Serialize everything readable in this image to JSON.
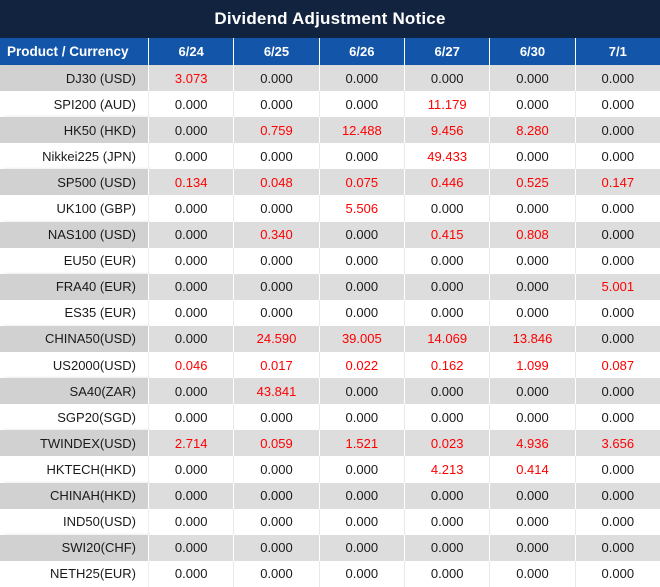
{
  "title": "Dividend Adjustment Notice",
  "colors": {
    "title_bg": "#12233f",
    "header_bg": "#1356a9",
    "label_alt_bg": "#d1d1d1",
    "row_alt_bg": "#dddddd",
    "value_red": "#ff0000",
    "value_black": "#1a1a1a"
  },
  "table": {
    "header": [
      "Product / Currency",
      "6/24",
      "6/25",
      "6/26",
      "6/27",
      "6/30",
      "7/1"
    ],
    "rows": [
      {
        "label": "DJ30 (USD)",
        "values": [
          "3.073",
          "0.000",
          "0.000",
          "0.000",
          "0.000",
          "0.000"
        ],
        "red": [
          1,
          0,
          0,
          0,
          0,
          0
        ]
      },
      {
        "label": "SPI200 (AUD)",
        "values": [
          "0.000",
          "0.000",
          "0.000",
          "11.179",
          "0.000",
          "0.000"
        ],
        "red": [
          0,
          0,
          0,
          1,
          0,
          0
        ]
      },
      {
        "label": "HK50 (HKD)",
        "values": [
          "0.000",
          "0.759",
          "12.488",
          "9.456",
          "8.280",
          "0.000"
        ],
        "red": [
          0,
          1,
          1,
          1,
          1,
          0
        ]
      },
      {
        "label": "Nikkei225 (JPN)",
        "values": [
          "0.000",
          "0.000",
          "0.000",
          "49.433",
          "0.000",
          "0.000"
        ],
        "red": [
          0,
          0,
          0,
          1,
          0,
          0
        ]
      },
      {
        "label": "SP500 (USD)",
        "values": [
          "0.134",
          "0.048",
          "0.075",
          "0.446",
          "0.525",
          "0.147"
        ],
        "red": [
          1,
          1,
          1,
          1,
          1,
          1
        ]
      },
      {
        "label": "UK100 (GBP)",
        "values": [
          "0.000",
          "0.000",
          "5.506",
          "0.000",
          "0.000",
          "0.000"
        ],
        "red": [
          0,
          0,
          1,
          0,
          0,
          0
        ]
      },
      {
        "label": "NAS100 (USD)",
        "values": [
          "0.000",
          "0.340",
          "0.000",
          "0.415",
          "0.808",
          "0.000"
        ],
        "red": [
          0,
          1,
          0,
          1,
          1,
          0
        ]
      },
      {
        "label": "EU50 (EUR)",
        "values": [
          "0.000",
          "0.000",
          "0.000",
          "0.000",
          "0.000",
          "0.000"
        ],
        "red": [
          0,
          0,
          0,
          0,
          0,
          0
        ]
      },
      {
        "label": "FRA40 (EUR)",
        "values": [
          "0.000",
          "0.000",
          "0.000",
          "0.000",
          "0.000",
          "5.001"
        ],
        "red": [
          0,
          0,
          0,
          0,
          0,
          1
        ]
      },
      {
        "label": "ES35 (EUR)",
        "values": [
          "0.000",
          "0.000",
          "0.000",
          "0.000",
          "0.000",
          "0.000"
        ],
        "red": [
          0,
          0,
          0,
          0,
          0,
          0
        ]
      },
      {
        "label": "CHINA50(USD)",
        "values": [
          "0.000",
          "24.590",
          "39.005",
          "14.069",
          "13.846",
          "0.000"
        ],
        "red": [
          0,
          1,
          1,
          1,
          1,
          0
        ]
      },
      {
        "label": "US2000(USD)",
        "values": [
          "0.046",
          "0.017",
          "0.022",
          "0.162",
          "1.099",
          "0.087"
        ],
        "red": [
          1,
          1,
          1,
          1,
          1,
          1
        ]
      },
      {
        "label": "SA40(ZAR)",
        "values": [
          "0.000",
          "43.841",
          "0.000",
          "0.000",
          "0.000",
          "0.000"
        ],
        "red": [
          0,
          1,
          0,
          0,
          0,
          0
        ]
      },
      {
        "label": "SGP20(SGD)",
        "values": [
          "0.000",
          "0.000",
          "0.000",
          "0.000",
          "0.000",
          "0.000"
        ],
        "red": [
          0,
          0,
          0,
          0,
          0,
          0
        ]
      },
      {
        "label": "TWINDEX(USD)",
        "values": [
          "2.714",
          "0.059",
          "1.521",
          "0.023",
          "4.936",
          "3.656"
        ],
        "red": [
          1,
          1,
          1,
          1,
          1,
          1
        ]
      },
      {
        "label": "HKTECH(HKD)",
        "values": [
          "0.000",
          "0.000",
          "0.000",
          "4.213",
          "0.414",
          "0.000"
        ],
        "red": [
          0,
          0,
          0,
          1,
          1,
          0
        ]
      },
      {
        "label": "CHINAH(HKD)",
        "values": [
          "0.000",
          "0.000",
          "0.000",
          "0.000",
          "0.000",
          "0.000"
        ],
        "red": [
          0,
          0,
          0,
          0,
          0,
          0
        ]
      },
      {
        "label": "IND50(USD)",
        "values": [
          "0.000",
          "0.000",
          "0.000",
          "0.000",
          "0.000",
          "0.000"
        ],
        "red": [
          0,
          0,
          0,
          0,
          0,
          0
        ]
      },
      {
        "label": "SWI20(CHF)",
        "values": [
          "0.000",
          "0.000",
          "0.000",
          "0.000",
          "0.000",
          "0.000"
        ],
        "red": [
          0,
          0,
          0,
          0,
          0,
          0
        ]
      },
      {
        "label": "NETH25(EUR)",
        "values": [
          "0.000",
          "0.000",
          "0.000",
          "0.000",
          "0.000",
          "0.000"
        ],
        "red": [
          0,
          0,
          0,
          0,
          0,
          0
        ]
      }
    ]
  }
}
